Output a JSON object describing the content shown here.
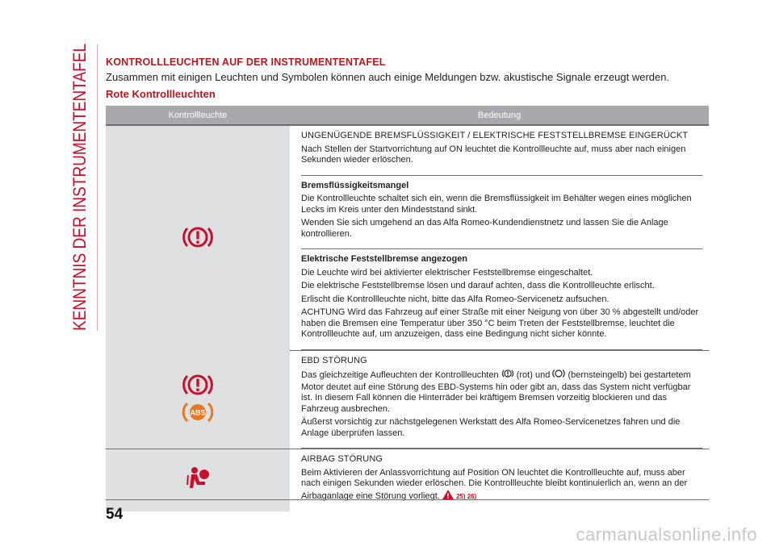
{
  "side_title": "KENNTNIS DER INSTRUMENTENTAFEL",
  "heading": "KONTROLLLEUCHTEN AUF DER INSTRUMENTENTAFEL",
  "intro": "Zusammen mit einigen Leuchten und Symbolen können auch einige Meldungen bzw. akustische Signale erzeugt werden.",
  "subheading": "Rote Kontrollleuchten",
  "table": {
    "col1": "Kontrollleuchte",
    "col2": "Bedeutung"
  },
  "rows": [
    {
      "icons": [
        "brake-warning-icon"
      ],
      "blocks": [
        {
          "title": "UNGENÜGENDE BREMSFLÜSSIGKEIT / ELEKTRISCHE FESTSTELLBREMSE EINGERÜCKT",
          "lines": [
            "Nach Stellen der Startvorrichtung auf ON leuchtet die Kontrollleuchte auf, muss aber nach einigen Sekunden wieder erlöschen."
          ]
        },
        {
          "title": "Bremsflüssigkeitsmangel",
          "lines": [
            "Die Kontrollleuchte schaltet sich ein, wenn die Bremsflüssigkeit im Behälter wegen eines möglichen Lecks im Kreis unter den Mindeststand sinkt.",
            "Wenden Sie sich umgehend an das Alfa Romeo-Kundendienstnetz und lassen Sie die Anlage kontrollieren."
          ]
        },
        {
          "title": "Elektrische Feststellbremse angezogen",
          "lines": [
            "Die Leuchte wird bei aktivierter elektrischer Feststellbremse eingeschaltet.",
            "Die elektrische Feststellbremse lösen und darauf achten, dass die Kontrollleuchte erlischt.",
            "Erlischt die Kontrollleuchte nicht, bitte das Alfa Romeo-Servicenetz aufsuchen.",
            "ACHTUNG Wird das Fahrzeug auf einer Straße mit einer Neigung von über 30 % abgestellt und/oder haben die Bremsen eine Temperatur über 350 °C beim Treten der Feststellbremse, leuchtet die Kontrollleuchte auf, um anzuzeigen, dass eine Bedingung nicht sicher könnte."
          ]
        }
      ]
    },
    {
      "icons": [
        "brake-warning-icon",
        "abs-warning-icon"
      ],
      "ebd": {
        "title": "EBD STÖRUNG",
        "line1_a": "Das gleichzeitige Aufleuchten der Kontrollleuchten",
        "line1_b": "(rot) und",
        "line1_c": "(bernsteingelb) bei gestartetem Motor deutet auf eine Störung des EBD-Systems hin oder gibt an, dass das System nicht verfügbar ist. In diesem Fall können die Hinterräder bei kräftigem Bremsen vorzeitig blockieren und das Fahrzeug ausbrechen.",
        "line2": "Äußerst vorsichtig zur nächstgelegenen Werkstatt des Alfa Romeo-Servicenetzes fahren und die Anlage überprüfen lassen."
      }
    },
    {
      "icons": [
        "airbag-warning-icon"
      ],
      "airbag": {
        "title": "AIRBAG STÖRUNG",
        "text": "Beim Aktivieren der Anlassvorrichtung auf Position ON leuchtet die Kontrollleuchte auf, muss aber nach einigen Sekunden wieder erlöschen. Die Kontrollleuchte bleibt kontinuierlich an, wenn an der Airbaganlage eine Störung vorliegt.",
        "refs": "25) 26)"
      }
    }
  ],
  "abs_icon_text": "ABS",
  "page_number": "54",
  "watermark": "carmanualsonline.info",
  "colors": {
    "accent_red": "#b8171e",
    "icon_red": "#c8102e",
    "icon_amber": "#e87722",
    "header_grey": "#a7a9ac",
    "cell_grey": "#dfe0e1"
  }
}
